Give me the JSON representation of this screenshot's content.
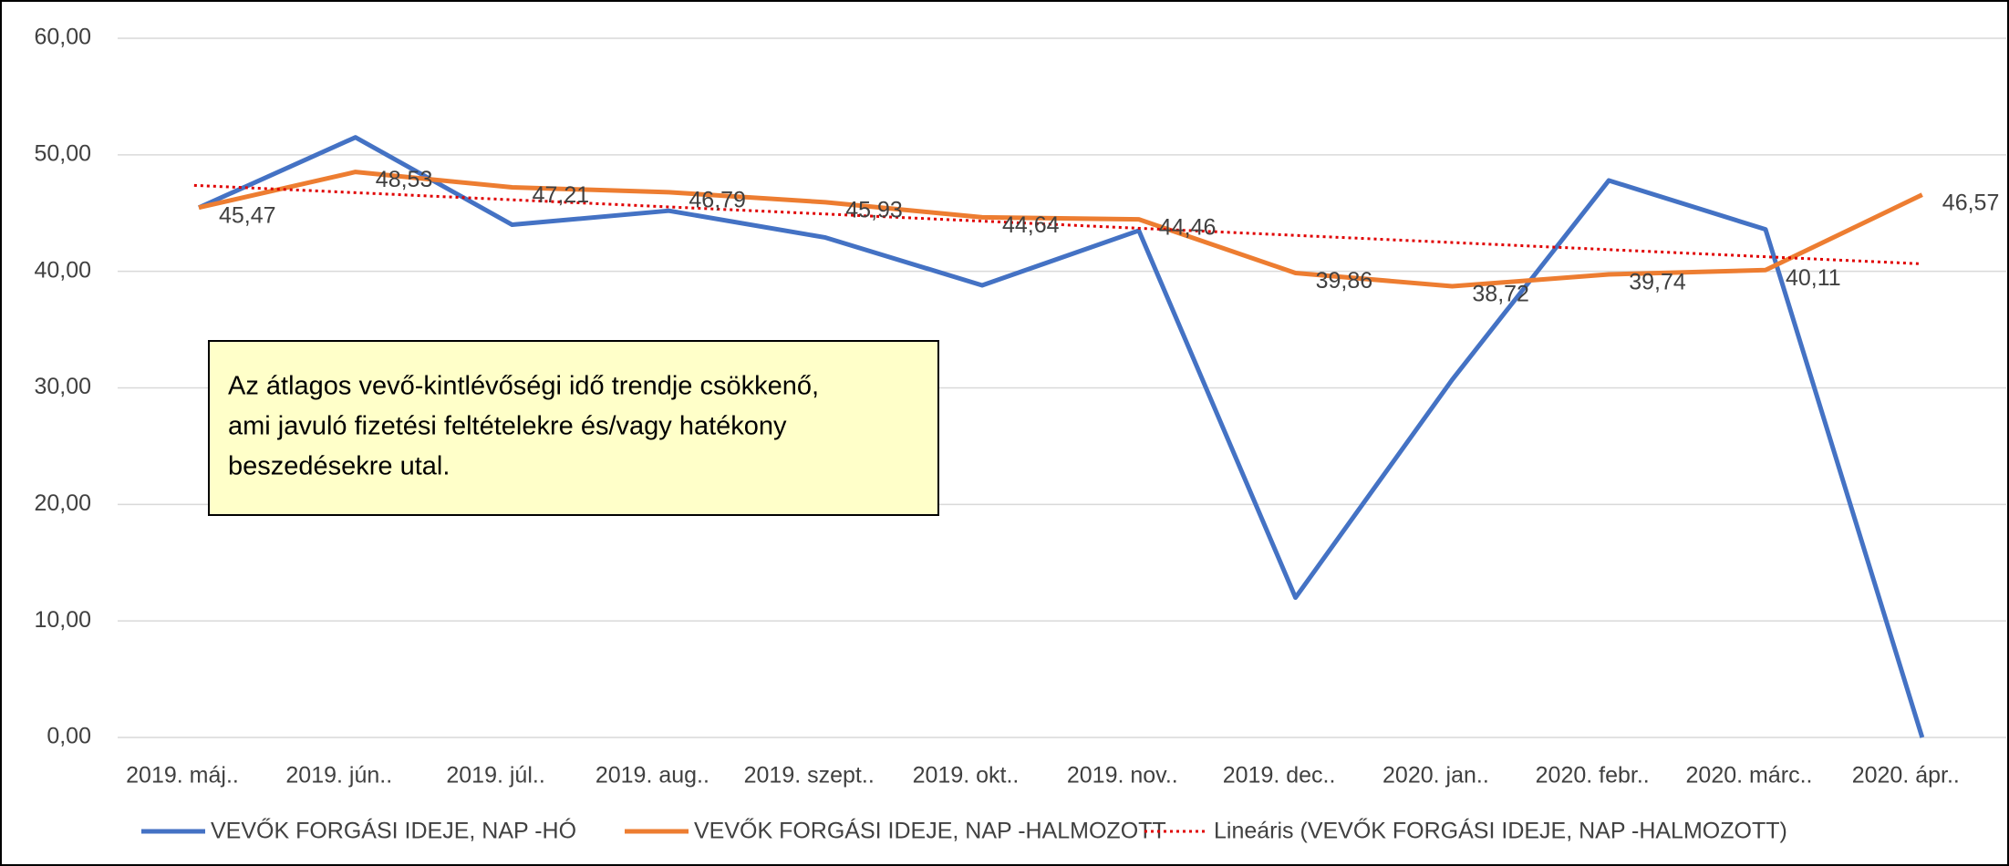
{
  "chart_data": {
    "type": "line",
    "categories": [
      "2019. máj..",
      "2019. jún..",
      "2019. júl..",
      "2019. aug..",
      "2019. szept..",
      "2019. okt..",
      "2019. nov..",
      "2019. dec..",
      "2020. jan..",
      "2020. febr..",
      "2020. márc..",
      "2020. ápr.."
    ],
    "series": [
      {
        "name": "VEVŐK FORGÁSI IDEJE, NAP -HÓ",
        "color": "#4472c4",
        "values": [
          45.47,
          51.5,
          44.0,
          45.2,
          42.9,
          38.8,
          43.5,
          12.0,
          30.7,
          47.8,
          43.6,
          0
        ]
      },
      {
        "name": "VEVŐK FORGÁSI IDEJE, NAP -HALMOZOTT",
        "color": "#ed7d31",
        "values": [
          45.47,
          48.53,
          47.21,
          46.79,
          45.93,
          44.64,
          44.46,
          39.86,
          38.72,
          39.74,
          40.11,
          46.57
        ],
        "value_labels": [
          "45,47",
          "48,53",
          "47,21",
          "46,79",
          "45,93",
          "44,64",
          "44,46",
          "39,86",
          "38,72",
          "39,74",
          "40,11",
          "46,57"
        ]
      }
    ],
    "trendline": {
      "name": "Lineáris (VEVŐK FORGÁSI IDEJE, NAP -HALMOZOTT)",
      "color": "#e00000"
    },
    "ylim": [
      0,
      60
    ],
    "yticks": [
      {
        "value": 0,
        "label": "0,00"
      },
      {
        "value": 10,
        "label": "10,00"
      },
      {
        "value": 20,
        "label": "20,00"
      },
      {
        "value": 30,
        "label": "30,00"
      },
      {
        "value": 40,
        "label": "40,00"
      },
      {
        "value": 50,
        "label": "50,00"
      },
      {
        "value": 60,
        "label": "60,00"
      }
    ],
    "grid": true,
    "legend": "bottom",
    "annotation": [
      "Az átlagos vevő-kintlévőségi idő trendje csökkenő,",
      "ami javuló fizetési feltételekre és/vagy hatékony",
      "beszedésekre utal."
    ]
  }
}
